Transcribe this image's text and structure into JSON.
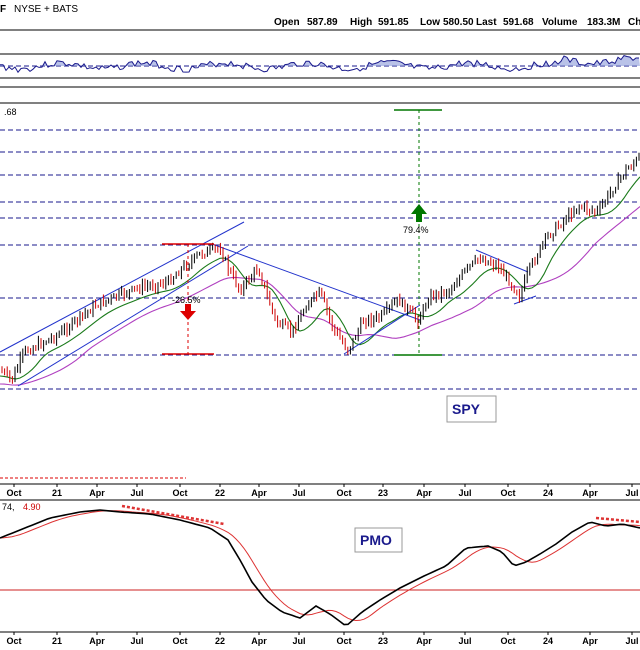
{
  "header": {
    "symbol_suffix": "F",
    "exchange": "NYSE + BATS",
    "open_label": "Open",
    "open": "587.89",
    "high_label": "High",
    "high": "591.85",
    "low_label": "Low",
    "low": "580.50",
    "last_label": "Last",
    "last": "591.68",
    "volume_label": "Volume",
    "volume": "183.3M",
    "trailing": "Ch"
  },
  "price_tag": ".68",
  "annotations": {
    "decline_pct": "-26.5%",
    "rally_pct": "79.4%",
    "ticker_box": "SPY"
  },
  "pmo": {
    "label": "PMO",
    "values_prefix": "74,",
    "value": "4.90"
  },
  "colors": {
    "up": "#000000",
    "down": "#cc0000",
    "ma_short": "#1a7a1a",
    "ma_long": "#b040c0",
    "trendline": "#2233cc",
    "dashed_hline": "#1a1a8c",
    "green_arrow": "#007700",
    "red_arrow": "#dd0000",
    "pmo_signal": "#dd3333"
  },
  "chart_data": {
    "type": "candlestick",
    "x_ticks": [
      "Oct",
      "21",
      "Apr",
      "Jul",
      "Oct",
      "22",
      "Apr",
      "Jul",
      "Oct",
      "23",
      "Apr",
      "Jul",
      "Oct",
      "24",
      "Apr",
      "Jul"
    ],
    "price_close_path": [
      [
        "2020-10",
        322
      ],
      [
        "2021-01",
        375
      ],
      [
        "2021-04",
        415
      ],
      [
        "2021-07",
        435
      ],
      [
        "2021-10",
        455
      ],
      [
        "2022-01",
        470
      ],
      [
        "2022-03",
        440
      ],
      [
        "2022-06",
        378
      ],
      [
        "2022-08",
        420
      ],
      [
        "2022-10",
        362
      ],
      [
        "2022-12",
        385
      ],
      [
        "2023-03",
        395
      ],
      [
        "2023-05",
        420
      ],
      [
        "2023-07",
        455
      ],
      [
        "2023-10",
        418
      ],
      [
        "2024-01",
        480
      ],
      [
        "2024-04",
        505
      ],
      [
        "2024-07",
        555
      ],
      [
        "2024-11",
        591.68
      ]
    ],
    "annotations": [
      {
        "text": "-26.5%",
        "type": "decline",
        "from": 479,
        "to": 352
      },
      {
        "text": "79.4%",
        "type": "rally",
        "from": 348,
        "to": 625
      }
    ],
    "pmo_path": [
      [
        "2020-10",
        2
      ],
      [
        "2021-01",
        3
      ],
      [
        "2021-04",
        3.5
      ],
      [
        "2021-07",
        3
      ],
      [
        "2021-10",
        2.5
      ],
      [
        "2022-01",
        2
      ],
      [
        "2022-04",
        -2
      ],
      [
        "2022-06",
        -4
      ],
      [
        "2022-08",
        -1.5
      ],
      [
        "2022-10",
        -4
      ],
      [
        "2023-01",
        -1.5
      ],
      [
        "2023-04",
        0.5
      ],
      [
        "2023-07",
        2.5
      ],
      [
        "2023-10",
        0.5
      ],
      [
        "2024-01",
        3
      ],
      [
        "2024-04",
        3.5
      ],
      [
        "2024-07",
        3.8
      ],
      [
        "2024-11",
        4.9
      ]
    ]
  }
}
